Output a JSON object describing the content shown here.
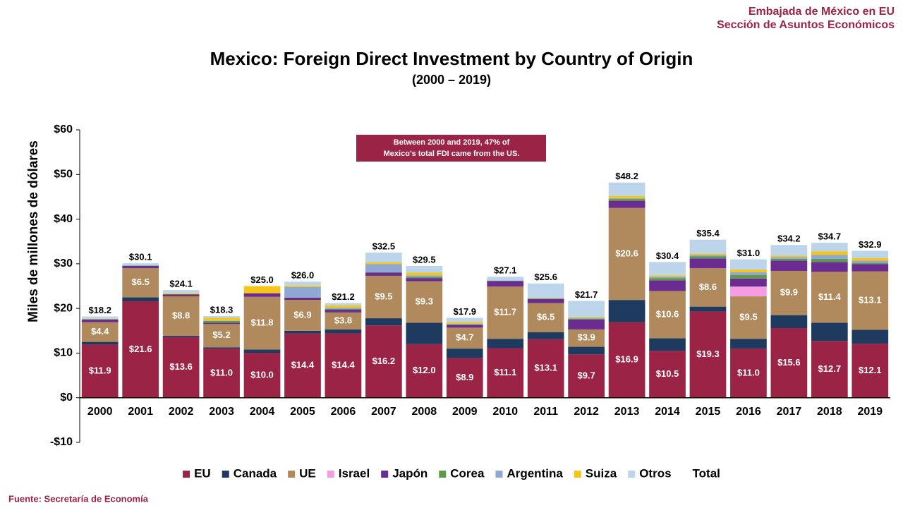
{
  "header": [
    "Embajada de México en EU",
    "Sección de Asuntos Económicos"
  ],
  "source": "Fuente:  Secretaría de Economía",
  "chart_data": {
    "type": "stacked_bar",
    "title": "Mexico: Foreign Direct Investment by Country of Origin",
    "subtitle": "(2000 – 2019)",
    "ylabel": "Miles de millones de dólares",
    "annotation": [
      "Between 2000 and 2019, 47% of",
      "Mexico’s total FDI came from the US."
    ],
    "categories": [
      "2000",
      "2001",
      "2002",
      "2003",
      "2004",
      "2005",
      "2006",
      "2007",
      "2008",
      "2009",
      "2010",
      "2011",
      "2012",
      "2013",
      "2014",
      "2015",
      "2016",
      "2017",
      "2018",
      "2019"
    ],
    "ylim": [
      -10,
      60
    ],
    "yticks": [
      {
        "value": 60,
        "label": "$60"
      },
      {
        "value": 50,
        "label": "$50"
      },
      {
        "value": 40,
        "label": "$40"
      },
      {
        "value": 30,
        "label": "$30"
      },
      {
        "value": 20,
        "label": "$20"
      },
      {
        "value": 10,
        "label": "$10"
      },
      {
        "value": 0,
        "label": "$0"
      },
      {
        "value": -10,
        "label": "-$10"
      }
    ],
    "series": [
      {
        "name": "EU",
        "color": "#9b2346",
        "values": [
          11.9,
          21.6,
          13.6,
          11.0,
          10.0,
          14.4,
          14.4,
          16.2,
          12.0,
          8.9,
          11.1,
          13.1,
          9.7,
          16.9,
          10.5,
          19.3,
          11.0,
          15.6,
          12.7,
          12.1
        ],
        "value_labels": [
          "$11.9",
          "$21.6",
          "$13.6",
          "$11.0",
          "$10.0",
          "$14.4",
          "$14.4",
          "$16.2",
          "$12.0",
          "$8.9",
          "$11.1",
          "$13.1",
          "$9.7",
          "$16.9",
          "$10.5",
          "$19.3",
          "$11.0",
          "$15.6",
          "$12.7",
          "$12.1"
        ]
      },
      {
        "name": "Canada",
        "color": "#1f3a5f",
        "values": [
          0.6,
          0.9,
          0.3,
          0.3,
          0.8,
          0.6,
          0.9,
          1.6,
          4.8,
          2.1,
          2.1,
          1.6,
          1.7,
          5.0,
          2.8,
          1.1,
          2.2,
          2.9,
          4.1,
          3.1
        ]
      },
      {
        "name": "UE",
        "color": "#b08a5c",
        "values": [
          4.4,
          6.5,
          8.8,
          5.2,
          11.8,
          6.9,
          3.8,
          9.5,
          9.3,
          4.7,
          11.7,
          6.5,
          3.9,
          20.6,
          10.6,
          8.6,
          9.5,
          9.9,
          11.4,
          13.1
        ],
        "value_labels": [
          "$4.4",
          "$6.5",
          "$8.8",
          "$5.2",
          "$11.8",
          "$6.9",
          "$3.8",
          "$9.5",
          "$9.3",
          "$4.7",
          "$11.7",
          "$6.5",
          "$3.9",
          "$20.6",
          "$10.6",
          "$8.6",
          "$9.5",
          "$9.9",
          "$11.4",
          "$13.1"
        ]
      },
      {
        "name": "Israel",
        "color": "#f59de0",
        "values": [
          0,
          0,
          0,
          0,
          0,
          0,
          0,
          0,
          0,
          0,
          0,
          0,
          0,
          0,
          0,
          0,
          2.2,
          0,
          0,
          0
        ]
      },
      {
        "name": "Japón",
        "color": "#6a2c91",
        "values": [
          0.6,
          0.5,
          0.4,
          0.3,
          0.8,
          0.5,
          0.6,
          0.7,
          0.7,
          0.6,
          1.2,
          0.9,
          2.2,
          1.6,
          2.4,
          2.2,
          1.8,
          2.3,
          2.2,
          1.6
        ]
      },
      {
        "name": "Corea",
        "color": "#5f9a4a",
        "values": [
          0.1,
          0.1,
          0.1,
          0.4,
          0,
          0,
          0.2,
          0.1,
          0.3,
          0.1,
          0.1,
          0.1,
          0.2,
          0.4,
          0.5,
          0.5,
          0.8,
          0.4,
          0.7,
          0.3
        ]
      },
      {
        "name": "Argentina",
        "color": "#8fa7d4",
        "values": [
          0,
          0,
          0,
          0.1,
          0,
          2.4,
          0.3,
          1.8,
          0.3,
          0.2,
          0.1,
          0.1,
          0.2,
          0.2,
          0.3,
          0.3,
          0.6,
          0.4,
          0.9,
          0.5
        ]
      },
      {
        "name": "Suiza",
        "color": "#f5c518",
        "values": [
          0.1,
          0,
          0.2,
          0.6,
          1.6,
          0.3,
          0.5,
          0.4,
          0.6,
          0.4,
          0,
          0.1,
          0.2,
          0.5,
          0.3,
          0.3,
          0.6,
          0.3,
          0.8,
          0.6
        ]
      },
      {
        "name": "Otros",
        "color": "#bcd5ea",
        "values": [
          0.5,
          0.5,
          0.7,
          0.4,
          0,
          0.9,
          0.5,
          2.2,
          1.5,
          0.9,
          0.8,
          3.2,
          3.6,
          3.0,
          3.0,
          3.1,
          2.3,
          2.4,
          1.9,
          1.6
        ]
      }
    ],
    "totals": {
      "name": "Total",
      "values": [
        18.2,
        30.1,
        24.1,
        18.3,
        25.0,
        26.0,
        21.2,
        32.5,
        29.5,
        17.9,
        27.1,
        25.6,
        21.7,
        48.2,
        30.4,
        35.4,
        31.0,
        34.2,
        34.7,
        32.9
      ],
      "value_labels": [
        "$18.2",
        "$30.1",
        "$24.1",
        "$18.3",
        "$25.0",
        "$26.0",
        "$21.2",
        "$32.5",
        "$29.5",
        "$17.9",
        "$27.1",
        "$25.6",
        "$21.7",
        "$48.2",
        "$30.4",
        "$35.4",
        "$31.0",
        "$34.2",
        "$34.7",
        "$32.9"
      ]
    }
  }
}
